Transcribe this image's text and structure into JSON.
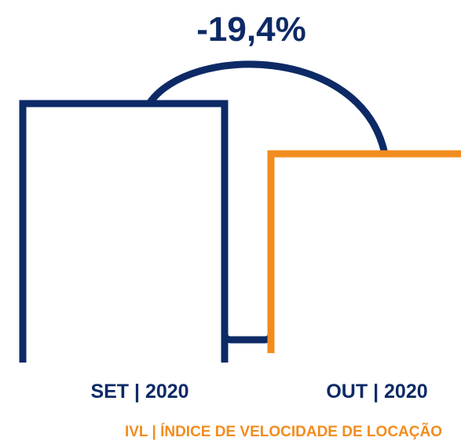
{
  "chart_data": {
    "type": "bar",
    "categories": [
      "SET | 2020",
      "OUT | 2020"
    ],
    "values": [
      100,
      80.6
    ],
    "change_label": "-19,4%",
    "footer": "IVL | ÍNDICE DE VELOCIDADE DE LOCAÇÃO",
    "colors": {
      "primary": "#0d2a66",
      "accent": "#f28c1e"
    }
  }
}
